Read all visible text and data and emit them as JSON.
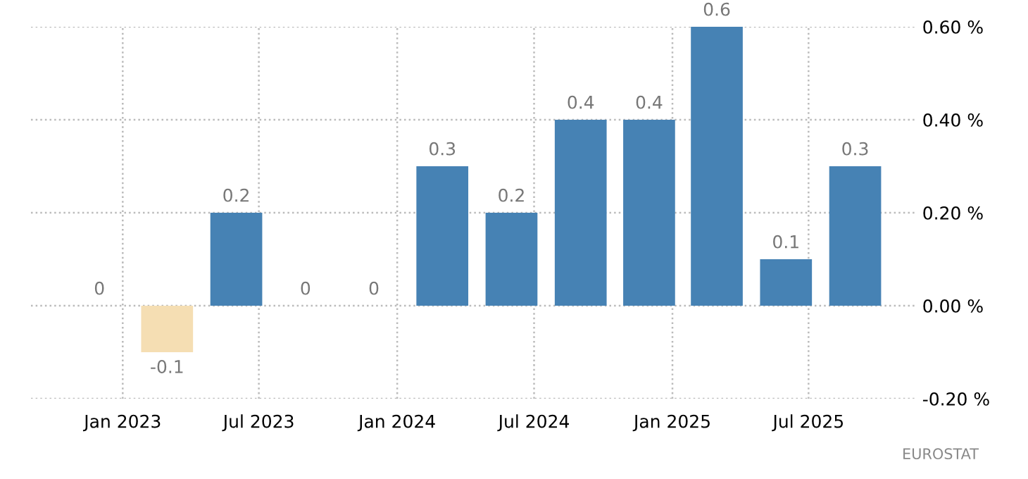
{
  "chart_data": {
    "type": "bar",
    "x": [
      "2022-12",
      "2023-03",
      "2023-06",
      "2023-09",
      "2023-12",
      "2024-03",
      "2024-06",
      "2024-09",
      "2024-12",
      "2025-03",
      "2025-06",
      "2025-09"
    ],
    "values": [
      0,
      -0.1,
      0.2,
      0,
      0,
      0.3,
      0.2,
      0.4,
      0.4,
      0.6,
      0.1,
      0.3
    ],
    "colors": [
      "#4682b4",
      "#f5deb3",
      "#4682b4",
      "#4682b4",
      "#4682b4",
      "#4682b4",
      "#4682b4",
      "#4682b4",
      "#4682b4",
      "#4682b4",
      "#4682b4",
      "#4682b4"
    ],
    "data_labels": true,
    "xlim": [
      "2022-09-01",
      "2025-11-20"
    ],
    "xticks": [
      {
        "value": "2023-01",
        "label": "Jan 2023"
      },
      {
        "value": "2023-07",
        "label": "Jul 2023"
      },
      {
        "value": "2024-01",
        "label": "Jan 2024"
      },
      {
        "value": "2024-07",
        "label": "Jul 2024"
      },
      {
        "value": "2025-01",
        "label": "Jan 2025"
      },
      {
        "value": "2025-07",
        "label": "Jul 2025"
      }
    ],
    "ylim": [
      -0.2,
      0.6
    ],
    "yticks": [
      {
        "value": -0.2,
        "label": "-0.20 %"
      },
      {
        "value": 0,
        "label": "0.00 %"
      },
      {
        "value": 0.2,
        "label": "0.20 %"
      },
      {
        "value": 0.4,
        "label": "0.40 %"
      },
      {
        "value": 0.6,
        "label": "0.60 %"
      }
    ],
    "grid": true,
    "annotations": [
      "EUROSTAT"
    ]
  }
}
